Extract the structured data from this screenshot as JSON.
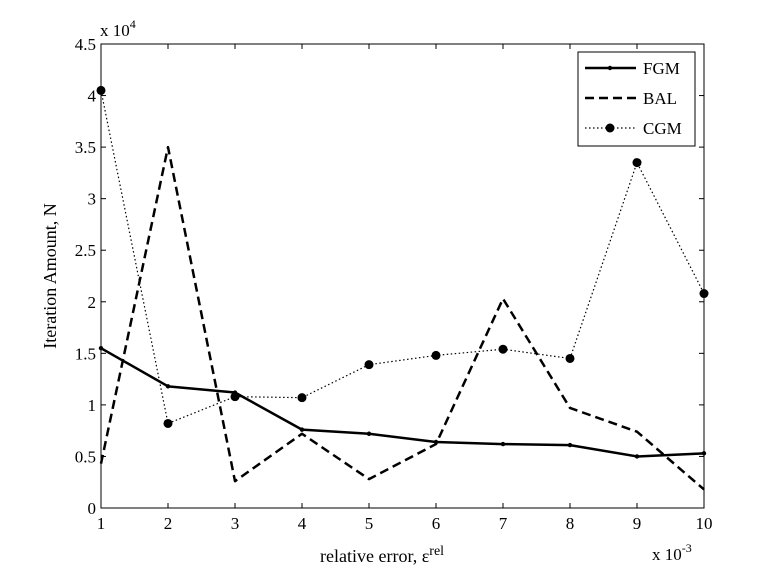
{
  "chart_data": {
    "type": "line",
    "xlabel": "relative error, ε",
    "xlabel_sup": "rel",
    "ylabel": "Iteration Amount, N",
    "x_multiplier": "x 10",
    "x_multiplier_exp": "-3",
    "y_multiplier": "x 10",
    "y_multiplier_exp": "4",
    "xlim": [
      1,
      10
    ],
    "ylim": [
      0,
      4.5
    ],
    "x": [
      1,
      2,
      3,
      4,
      5,
      6,
      7,
      8,
      9,
      10
    ],
    "xticks": [
      "1",
      "2",
      "3",
      "4",
      "5",
      "6",
      "7",
      "8",
      "9",
      "10"
    ],
    "yticks": [
      "0",
      "0.5",
      "1",
      "1.5",
      "2",
      "2.5",
      "3",
      "3.5",
      "4",
      "4.5"
    ],
    "legend_position": "top-right",
    "grid": false,
    "series": [
      {
        "name": "FGM",
        "style": "solid",
        "marker": "dot-small",
        "values": [
          1.55,
          1.18,
          1.12,
          0.76,
          0.72,
          0.64,
          0.62,
          0.61,
          0.5,
          0.53
        ]
      },
      {
        "name": "BAL",
        "style": "dashed",
        "marker": "none",
        "values": [
          0.43,
          3.5,
          0.26,
          0.72,
          0.28,
          0.62,
          2.03,
          0.97,
          0.74,
          0.18
        ]
      },
      {
        "name": "CGM",
        "style": "dotted",
        "marker": "dot-large",
        "values": [
          4.05,
          0.82,
          1.08,
          1.07,
          1.39,
          1.48,
          1.54,
          1.45,
          3.35,
          2.08
        ]
      }
    ]
  }
}
